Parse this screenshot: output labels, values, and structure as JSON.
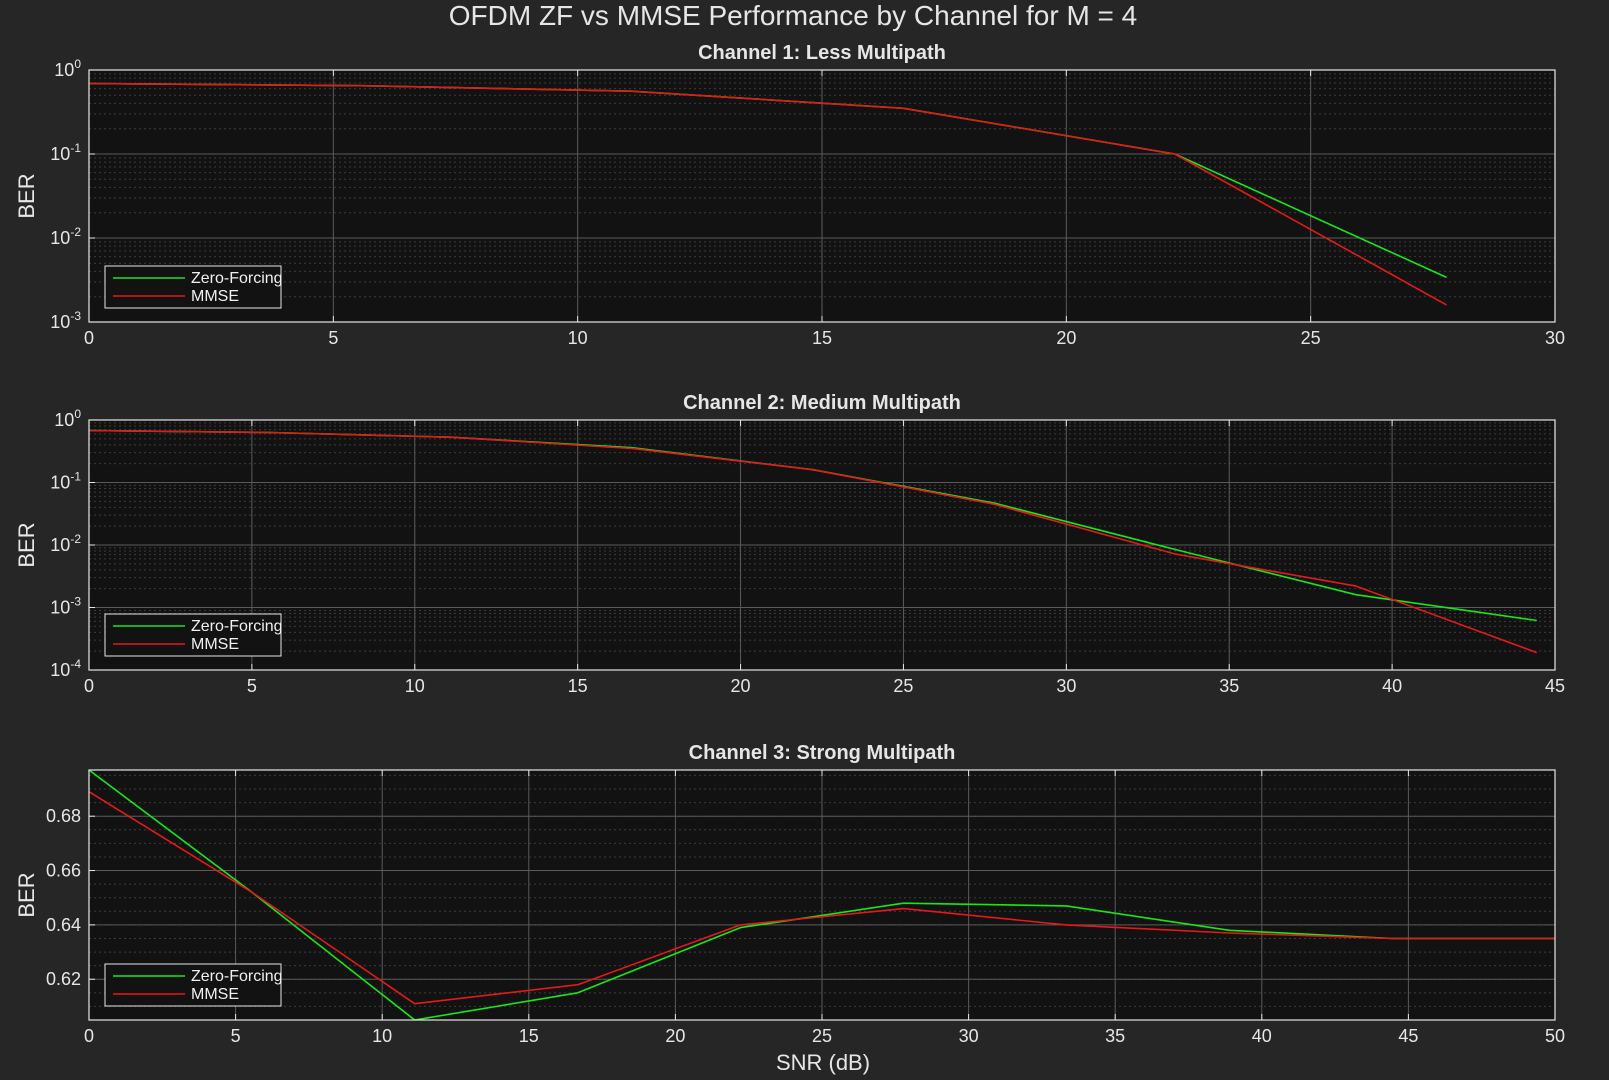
{
  "figure": {
    "title": "OFDM ZF vs MMSE Performance by Channel for M = 4",
    "xlabel": "SNR (dB)",
    "background": "#262626",
    "axes_background": "#121212",
    "grid_major": "#5a5a5a",
    "grid_minor": "#3c3c3c",
    "frame_color": "#e6e6e6"
  },
  "chart_data": [
    {
      "type": "line",
      "title": "Channel 1: Less Multipath",
      "ylabel": "BER",
      "yscale": "log",
      "xlim": [
        0,
        30
      ],
      "xticks": [
        0,
        5,
        10,
        15,
        20,
        25,
        30
      ],
      "ylim": [
        0.001,
        1
      ],
      "ytick_exponents": [
        0,
        -1,
        -2,
        -3
      ],
      "grid": true,
      "legend": "bottom-left",
      "series": [
        {
          "name": "Zero-Forcing",
          "color": "#19e619",
          "x": [
            0,
            5.56,
            11.11,
            16.67,
            22.22,
            27.78
          ],
          "y": [
            0.69,
            0.65,
            0.56,
            0.35,
            0.1,
            0.0034
          ]
        },
        {
          "name": "MMSE",
          "color": "#e61919",
          "x": [
            0,
            5.56,
            11.11,
            16.67,
            22.22,
            27.78
          ],
          "y": [
            0.69,
            0.65,
            0.56,
            0.35,
            0.1,
            0.0016
          ]
        }
      ]
    },
    {
      "type": "line",
      "title": "Channel 2: Medium Multipath",
      "ylabel": "BER",
      "yscale": "log",
      "xlim": [
        0,
        45
      ],
      "xticks": [
        0,
        5,
        10,
        15,
        20,
        25,
        30,
        35,
        40,
        45
      ],
      "ylim": [
        0.0001,
        1
      ],
      "ytick_exponents": [
        0,
        -1,
        -2,
        -3,
        -4
      ],
      "grid": true,
      "legend": "bottom-left",
      "series": [
        {
          "name": "Zero-Forcing",
          "color": "#19e619",
          "x": [
            0,
            5.56,
            11.11,
            16.67,
            22.22,
            27.78,
            33.33,
            38.89,
            44.44
          ],
          "y": [
            0.68,
            0.63,
            0.53,
            0.36,
            0.16,
            0.047,
            0.0085,
            0.0016,
            0.00062
          ]
        },
        {
          "name": "MMSE",
          "color": "#e61919",
          "x": [
            0,
            5.56,
            11.11,
            16.67,
            22.22,
            27.78,
            33.33,
            38.89,
            44.44
          ],
          "y": [
            0.68,
            0.63,
            0.53,
            0.35,
            0.16,
            0.045,
            0.0072,
            0.0022,
            0.00019
          ]
        }
      ]
    },
    {
      "type": "line",
      "title": "Channel 3: Strong Multipath",
      "ylabel": "BER",
      "yscale": "linear",
      "xlim": [
        0,
        50
      ],
      "xticks": [
        0,
        5,
        10,
        15,
        20,
        25,
        30,
        35,
        40,
        45,
        50
      ],
      "ylim": [
        0.605,
        0.697
      ],
      "yticks": [
        0.62,
        0.64,
        0.66,
        0.68
      ],
      "grid": true,
      "legend": "bottom-left",
      "series": [
        {
          "name": "Zero-Forcing",
          "color": "#19e619",
          "x": [
            0,
            5.56,
            11.11,
            16.67,
            22.22,
            27.78,
            33.33,
            38.89,
            44.44,
            50
          ],
          "y": [
            0.697,
            0.652,
            0.605,
            0.615,
            0.639,
            0.648,
            0.647,
            0.638,
            0.635,
            0.635
          ]
        },
        {
          "name": "MMSE",
          "color": "#e61919",
          "x": [
            0,
            5.56,
            11.11,
            16.67,
            22.22,
            27.78,
            33.33,
            38.89,
            44.44,
            50
          ],
          "y": [
            0.689,
            0.652,
            0.611,
            0.618,
            0.64,
            0.646,
            0.64,
            0.637,
            0.635,
            0.635
          ]
        }
      ]
    }
  ]
}
